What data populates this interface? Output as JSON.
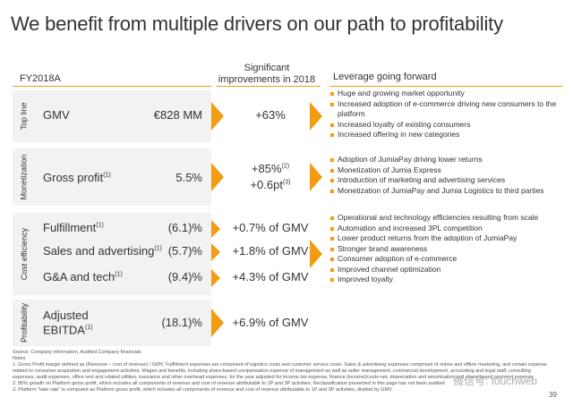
{
  "title": "We benefit from multiple drivers on our path to profitability",
  "headers": {
    "fy": "FY2018A",
    "improvements": "Significant improvements in 2018",
    "leverage": "Leverage going forward"
  },
  "sections": {
    "top_line": {
      "label": "Top line",
      "rows": [
        {
          "label": "GMV",
          "value": "€828 MM",
          "improvement": "+63%"
        }
      ],
      "bullets": [
        "Huge and growing market opportunity",
        "Increased adoption of e-commerce driving new consumers to the platform",
        "Increased loyalty of existing consumers",
        "Increased offering in new categories"
      ]
    },
    "monetization": {
      "label": "Monetization",
      "rows": [
        {
          "label": "Gross profit",
          "sup": "(1)",
          "value": "5.5%",
          "improvement_1": "+85%",
          "sup_1": "(2)",
          "improvement_2": "+0.6pt",
          "sup_2": "(3)"
        }
      ],
      "bullets": [
        "Adoption of JumiaPay driving lower returns",
        "Monetization of Jumia Express",
        "Introduction of marketing and advertising services",
        "Monetization of JumiaPay and Jumia Logistics to third parties"
      ]
    },
    "cost_efficiency": {
      "label": "Cost efficiency",
      "rows": [
        {
          "label": "Fulfillment",
          "sup": "(1)",
          "value": "(6.1)%",
          "improvement": "+0.7% of GMV"
        },
        {
          "label": "Sales and advertising",
          "sup": "(1)",
          "value": "(5.7)%",
          "improvement": "+1.8% of GMV"
        },
        {
          "label": "G&A and tech",
          "sup": "(1)",
          "value": "(9.4)%",
          "improvement": "+4.3% of GMV"
        }
      ],
      "bullets": [
        "Operational and technology efficiencies resulting from scale",
        "Automation and increased 3PL competition",
        "Lower product returns from the adoption of JumiaPay",
        "Stronger brand awareness",
        "Consumer adoption of e-commerce",
        "Improved channel optimization",
        "Improved loyalty"
      ]
    },
    "profitability": {
      "label": "Profitability",
      "rows": [
        {
          "label_1": "Adjusted",
          "label_2": "EBITDA",
          "sup": "(1)",
          "value": "(18.1)%",
          "improvement": "+6.9% of GMV"
        }
      ]
    }
  },
  "footer": {
    "source": "Source: Company information, Audited Company financials",
    "notes": "Notes",
    "note_1": "1.  Gross Profit margin defined as (Revenue – cost of revenue) / GMV. Fulfillment expenses are comprised of logistics costs and customer service costs. Sales & advertising expenses comprised of online and offline marketing, and certain expense related to consumer acquisition and engagement activities. Wages and benefits, including share-based compensation expense of management as well as seller management, commercial development, accounting and legal staff, consulting expenses, audit expenses, office rent and related utilities, insurance and other overhead expenses, for the year adjusted for income tax expense, finance (income)/costs-net, depreciation and amortization and share-based payment expense",
    "note_2": "2.  85% growth on Platform gross profit, which includes all components of revenue and cost of revenue attributable to 1P and 3P activities. Reclassification presented in this page has not been audited",
    "note_3": "3.  Platform \"take rate\" is computed as Platform gross profit, which includes all components of revenue and cost of revenue attributable to 1P and 3P activities, divided by GMV",
    "page": "39",
    "watermark": "微信号: touchweb"
  },
  "colors": {
    "accent": "#f39c12",
    "panel": "#f2f2f2"
  }
}
